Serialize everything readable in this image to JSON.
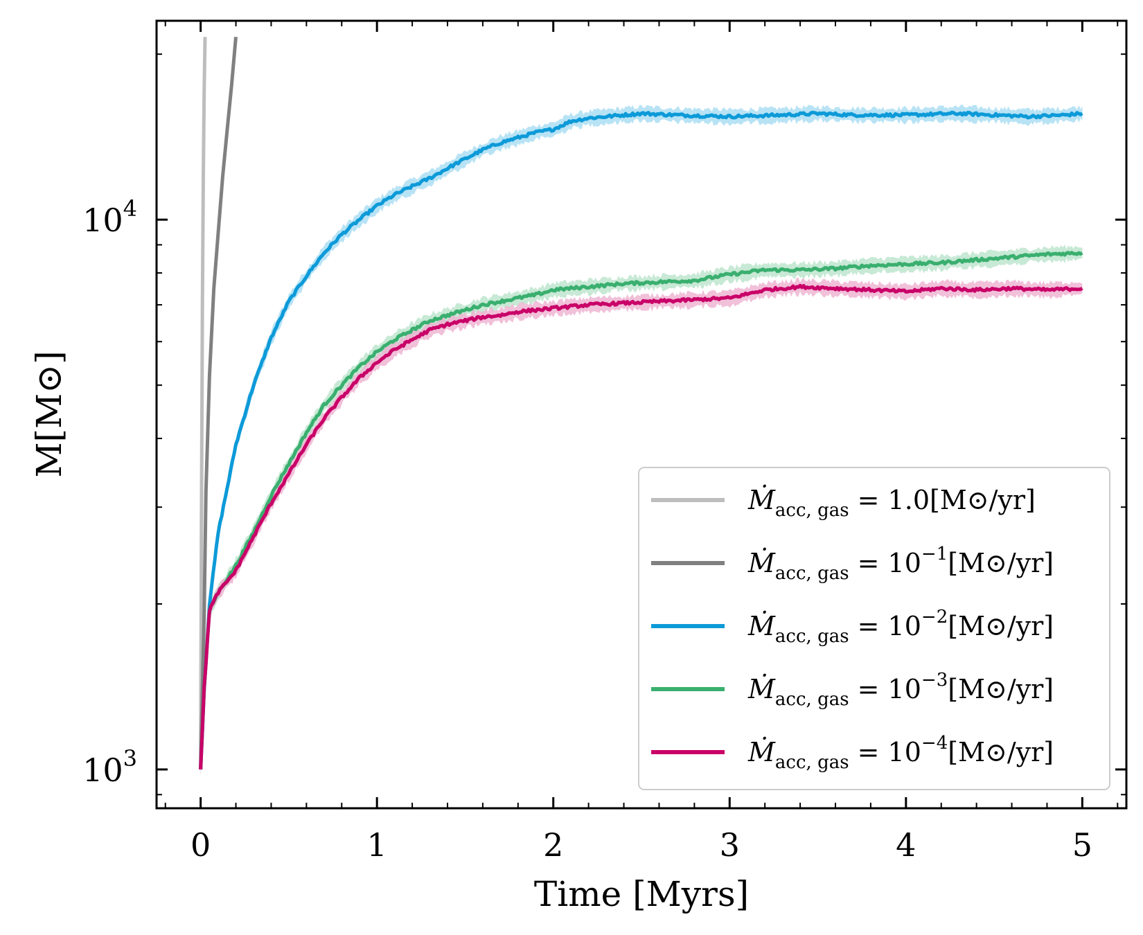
{
  "chart_data": {
    "type": "line",
    "xlabel": "Time [Myrs]",
    "ylabel": "M[M⊙]",
    "xlim": [
      -0.25,
      5.25
    ],
    "ylim": [
      850,
      23000
    ],
    "yscale": "log",
    "x_ticks": [
      0,
      1,
      2,
      3,
      4,
      5
    ],
    "y_ticks": [
      {
        "value": 1000,
        "base": "10",
        "exp": "3"
      },
      {
        "value": 10000,
        "base": "10",
        "exp": "4"
      }
    ],
    "grid": false,
    "legend_position": "lower-right",
    "series": [
      {
        "name": "Ṁacc, gas = 1.0[M⊙/yr]",
        "label_base": "Ṁ",
        "label_sub": "acc, gas",
        "label_eq": " = 1.0",
        "label_exp": "",
        "label_unit": "[M⊙/yr]",
        "color": "#bdbdbd",
        "band": false,
        "x": [
          0,
          0.005,
          0.01,
          0.015,
          0.02,
          0.025
        ],
        "y": [
          1000,
          3000,
          7000,
          12000,
          17000,
          21500
        ]
      },
      {
        "name": "Ṁacc, gas = 10⁻¹[M⊙/yr]",
        "label_base": "Ṁ",
        "label_sub": "acc, gas",
        "label_eq": " = 10",
        "label_exp": "−1",
        "label_unit": "[M⊙/yr]",
        "color": "#808080",
        "band": false,
        "x": [
          0,
          0.01,
          0.02,
          0.03,
          0.05,
          0.075,
          0.1,
          0.125,
          0.15,
          0.175,
          0.2
        ],
        "y": [
          1000,
          1400,
          1900,
          3200,
          5200,
          7500,
          9500,
          12000,
          14500,
          17500,
          21500
        ]
      },
      {
        "name": "Ṁacc, gas = 10⁻²[M⊙/yr]",
        "label_base": "Ṁ",
        "label_sub": "acc, gas",
        "label_eq": " = 10",
        "label_exp": "−2",
        "label_unit": "[M⊙/yr]",
        "color": "#0d9ad8",
        "band": true,
        "band_color": "#a6dcf2",
        "x": [
          0,
          0.02,
          0.05,
          0.1,
          0.2,
          0.3,
          0.4,
          0.5,
          0.6,
          0.7,
          0.8,
          0.9,
          1.0,
          1.1,
          1.2,
          1.3,
          1.4,
          1.5,
          1.6,
          1.7,
          1.8,
          1.9,
          2.0,
          2.1,
          2.2,
          2.3,
          2.4,
          2.5,
          2.7,
          3.0,
          3.3,
          3.5,
          3.7,
          4.0,
          4.3,
          4.5,
          4.7,
          4.9,
          5.0
        ],
        "y": [
          1000,
          1400,
          2000,
          2700,
          3900,
          5000,
          6100,
          7100,
          7900,
          8700,
          9400,
          10000,
          10600,
          11100,
          11500,
          11900,
          12400,
          12900,
          13400,
          13800,
          14100,
          14400,
          14600,
          15100,
          15300,
          15400,
          15500,
          15600,
          15500,
          15400,
          15500,
          15600,
          15500,
          15500,
          15600,
          15500,
          15400,
          15500,
          15600
        ]
      },
      {
        "name": "Ṁacc, gas = 10⁻³[M⊙/yr]",
        "label_base": "Ṁ",
        "label_sub": "acc, gas",
        "label_eq": " = 10",
        "label_exp": "−3",
        "label_unit": "[M⊙/yr]",
        "color": "#3aaf6f",
        "band": true,
        "band_color": "#b9e3cb",
        "x": [
          0,
          0.02,
          0.05,
          0.1,
          0.2,
          0.3,
          0.4,
          0.5,
          0.6,
          0.7,
          0.8,
          0.9,
          1.0,
          1.1,
          1.2,
          1.3,
          1.4,
          1.5,
          1.6,
          1.7,
          1.8,
          1.9,
          2.0,
          2.2,
          2.4,
          2.6,
          2.8,
          3.0,
          3.2,
          3.4,
          3.6,
          3.8,
          4.0,
          4.2,
          4.4,
          4.6,
          4.8,
          5.0
        ],
        "y": [
          1000,
          1400,
          1950,
          2100,
          2350,
          2700,
          3150,
          3600,
          4100,
          4600,
          5000,
          5400,
          5750,
          6050,
          6300,
          6550,
          6700,
          6850,
          7000,
          7100,
          7200,
          7300,
          7450,
          7550,
          7650,
          7700,
          7750,
          7950,
          8100,
          8100,
          8150,
          8250,
          8300,
          8350,
          8450,
          8550,
          8650,
          8700
        ]
      },
      {
        "name": "Ṁacc, gas = 10⁻⁴[M⊙/yr]",
        "label_base": "Ṁ",
        "label_sub": "acc, gas",
        "label_eq": " = 10",
        "label_exp": "−4",
        "label_unit": "[M⊙/yr]",
        "color": "#c90068",
        "band": true,
        "band_color": "#eeb0cf",
        "x": [
          0,
          0.02,
          0.05,
          0.1,
          0.2,
          0.3,
          0.4,
          0.5,
          0.6,
          0.7,
          0.8,
          0.9,
          1.0,
          1.1,
          1.2,
          1.3,
          1.4,
          1.5,
          1.6,
          1.7,
          1.8,
          1.9,
          2.0,
          2.2,
          2.4,
          2.6,
          2.8,
          3.0,
          3.2,
          3.4,
          3.6,
          3.8,
          4.0,
          4.2,
          4.4,
          4.6,
          4.8,
          5.0
        ],
        "y": [
          1000,
          1400,
          1950,
          2100,
          2300,
          2650,
          3050,
          3450,
          3900,
          4350,
          4750,
          5150,
          5500,
          5800,
          6050,
          6300,
          6450,
          6550,
          6650,
          6700,
          6800,
          6850,
          6900,
          7000,
          7050,
          7100,
          7150,
          7200,
          7450,
          7550,
          7500,
          7450,
          7400,
          7500,
          7450,
          7500,
          7450,
          7500
        ]
      }
    ]
  }
}
